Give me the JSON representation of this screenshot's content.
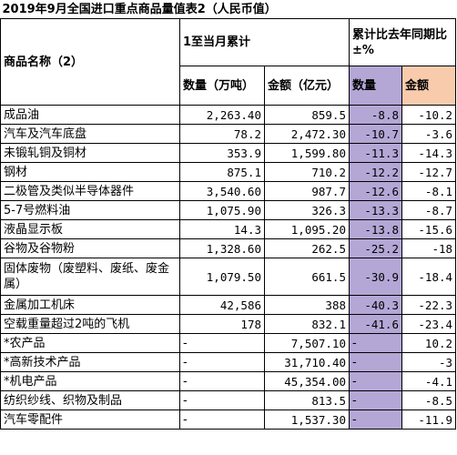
{
  "title": "2019年9月全国进口重点商品量值表2（人民币值）",
  "table": {
    "header": {
      "name": "商品名称（2）",
      "cumulative": "1至当月累计",
      "yoy": "累计比去年同期比±%",
      "qty": "数量（万吨）",
      "amount": "金额（亿元）",
      "yoy_qty": "数量",
      "yoy_amount": "金额"
    },
    "rows": [
      [
        "成品油",
        "2,263.40",
        "859.5",
        "-8.8",
        "-10.2"
      ],
      [
        "汽车及汽车底盘",
        "78.2",
        "2,472.30",
        "-10.7",
        "-3.6"
      ],
      [
        "未锻轧铜及铜材",
        "353.9",
        "1,599.80",
        "-11.3",
        "-14.3"
      ],
      [
        "钢材",
        "875.1",
        "710.2",
        "-12.2",
        "-12.7"
      ],
      [
        "二极管及类似半导体器件",
        "3,540.60",
        "987.7",
        "-12.6",
        "-8.1"
      ],
      [
        "5-7号燃料油",
        "1,075.90",
        "326.3",
        "-13.3",
        "-8.7"
      ],
      [
        "液晶显示板",
        "14.3",
        "1,095.20",
        "-13.8",
        "-15.6"
      ],
      [
        "谷物及谷物粉",
        "1,328.60",
        "262.5",
        "-25.2",
        "-18"
      ],
      [
        "固体废物（废塑料、废纸、废金属）",
        "1,079.50",
        "661.5",
        "-30.9",
        "-18.4"
      ],
      [
        "金属加工机床",
        "42,586",
        "388",
        "-40.3",
        "-22.3"
      ],
      [
        "空载重量超过2吨的飞机",
        "178",
        "832.1",
        "-41.6",
        "-23.4"
      ],
      [
        "*农产品",
        "-",
        "7,507.10",
        "-",
        "10.2"
      ],
      [
        "*高新技术产品",
        "-",
        "31,710.40",
        "-",
        "-3"
      ],
      [
        "*机电产品",
        "-",
        "45,354.00",
        "-",
        "-4.1"
      ],
      [
        "纺织纱线、织物及制品",
        "-",
        "813.5",
        "-",
        "-8.5"
      ],
      [
        "汽车零配件",
        "-",
        "1,537.30",
        "-",
        "-11.9"
      ]
    ]
  }
}
